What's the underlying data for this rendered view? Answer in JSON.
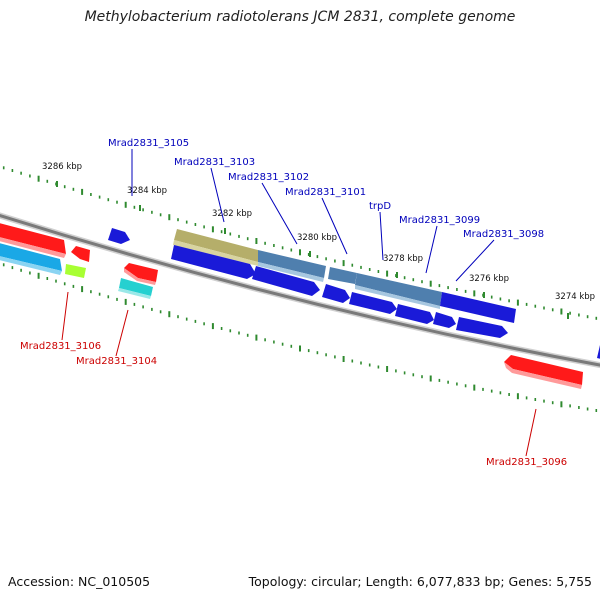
{
  "title": "Methylobacterium radiotolerans JCM 2831, complete genome",
  "footer": {
    "accession": "Accession: NC_010505",
    "summary": "Topology: circular; Length: 6,077,833 bp; Genes: 5,755"
  },
  "colors": {
    "backbone": "#7a7a7a",
    "tick": "#2f8a2f",
    "plus_label": "#0000bb",
    "minus_label": "#cc0000",
    "kbp_label": "#111111"
  },
  "scale": {
    "tick_labels": [
      "3286 kbp",
      "3284 kbp",
      "3282 kbp",
      "3280 kbp",
      "3278 kbp",
      "3276 kbp",
      "3274 kbp"
    ]
  },
  "genes": [
    {
      "label": "Mrad2831_3105",
      "strand": "+"
    },
    {
      "label": "Mrad2831_3103",
      "strand": "+"
    },
    {
      "label": "Mrad2831_3102",
      "strand": "+"
    },
    {
      "label": "Mrad2831_3101",
      "strand": "+"
    },
    {
      "label": "trpD",
      "strand": "+"
    },
    {
      "label": "Mrad2831_3099",
      "strand": "+"
    },
    {
      "label": "Mrad2831_3098",
      "strand": "+"
    },
    {
      "label": "Mrad2831_3106",
      "strand": "-"
    },
    {
      "label": "Mrad2831_3104",
      "strand": "-"
    },
    {
      "label": "Mrad2831_3096",
      "strand": "-"
    }
  ]
}
